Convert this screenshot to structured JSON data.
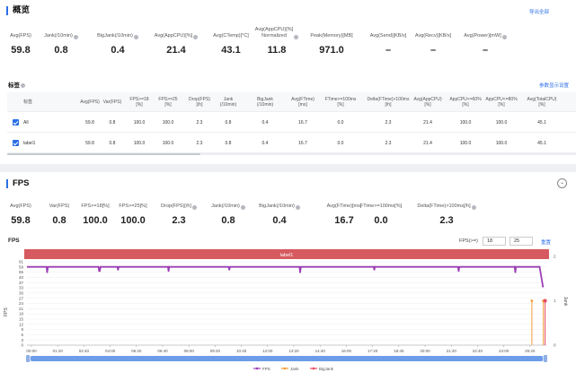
{
  "overview": {
    "title": "概览",
    "export_label": "导出全部",
    "metrics": [
      {
        "label": "Avg(FPS)",
        "value": "59.8",
        "help": false
      },
      {
        "label": "Jank(/10min)",
        "value": "0.8",
        "help": true
      },
      {
        "label": "BigJank(/10min)",
        "value": "0.4",
        "help": true
      },
      {
        "label": "Avg(AppCPU)[%]",
        "value": "21.4",
        "help": true
      },
      {
        "label": "Avg(CTemp)[°C]",
        "value": "43.1",
        "help": false
      },
      {
        "label": "Avg(AppCPU)[%]\nNormalized",
        "value": "11.8",
        "help": true
      },
      {
        "label": "Peak(Memory)[MB]",
        "value": "971.0",
        "help": false
      },
      {
        "label": "Avg(Send)[KB/s]",
        "value": "–",
        "help": false
      },
      {
        "label": "Avg(Recv)[KB/s]",
        "value": "–",
        "help": false
      },
      {
        "label": "Avg(Power)[mW]",
        "value": "–",
        "help": true
      }
    ]
  },
  "labels": {
    "title": "标签",
    "settings_label": "参数显示设置",
    "columns": [
      "标签",
      "Avg(FPS)",
      "Var(FPS)",
      "FPS>=18\n[%]",
      "FPS>=25\n[%]",
      "Drop(FPS)\n[/h]",
      "Jank\n(/10min)",
      "BigJank\n(/10min)",
      "Avg(FTime)\n[ms]",
      "FTime>=100ms\n[%]",
      "Delta(FTime)>100ms\n[/h]",
      "Avg(AppCPU)\n[%]",
      "AppCPU<=60%\n[%]",
      "AppCPU<=80%\n[%]",
      "Avg(TotalCPU)\n[%]"
    ],
    "rows": [
      {
        "name": "All",
        "cells": [
          "59.8",
          "0.8",
          "100.0",
          "100.0",
          "2.3",
          "0.8",
          "0.4",
          "16.7",
          "0.0",
          "2.3",
          "21.4",
          "100.0",
          "100.0",
          "45.1"
        ]
      },
      {
        "name": "label1",
        "cells": [
          "59.8",
          "0.8",
          "100.0",
          "100.0",
          "2.3",
          "0.8",
          "0.4",
          "16.7",
          "0.0",
          "2.3",
          "21.4",
          "100.0",
          "100.0",
          "45.1"
        ]
      }
    ]
  },
  "fps_section": {
    "title": "FPS",
    "metrics": [
      {
        "label": "Avg(FPS)",
        "value": "59.8",
        "help": false
      },
      {
        "label": "Var(FPS)",
        "value": "0.8",
        "help": false
      },
      {
        "label": "FPS>=18[%]",
        "value": "100.0",
        "help": false
      },
      {
        "label": "FPS>=25[%]",
        "value": "100.0",
        "help": false
      },
      {
        "label": "Drop(FPS)[/h]",
        "value": "2.3",
        "help": true
      },
      {
        "label": "Jank(/10min)",
        "value": "0.8",
        "help": true
      },
      {
        "label": "BigJank(/10min)",
        "value": "0.4",
        "help": true
      },
      {
        "label": "Avg(FTime)[ms]",
        "value": "16.7",
        "help": false
      },
      {
        "label": "FTime>=100ms[%]",
        "value": "0.0",
        "help": false
      },
      {
        "label": "Delta(FTime)>100ms[/h]",
        "value": "2.3",
        "help": true
      }
    ],
    "chart_title": "FPS",
    "threshold_label": "FPS(>=)",
    "threshold_1": "18",
    "threshold_2": "25",
    "reset_label": "重置",
    "band_label": "label1"
  },
  "chart_data": {
    "type": "line",
    "ylabel": "FPS",
    "y2label": "Jank",
    "ylim": [
      0,
      91
    ],
    "y2lim": [
      0,
      2
    ],
    "yticks": [
      0,
      3,
      6,
      9,
      12,
      15,
      18,
      21,
      24,
      27,
      30,
      33,
      37,
      40,
      55,
      59,
      91
    ],
    "y2ticks": [
      0,
      1,
      2
    ],
    "x": [
      "00:00",
      "01:20",
      "02:40",
      "04:00",
      "05:20",
      "06:40",
      "08:00",
      "09:20",
      "10:40",
      "12:00",
      "13:20",
      "14:40",
      "16:00",
      "17:20",
      "18:40",
      "20:00",
      "21:20",
      "22:40",
      "24:00",
      "25:20"
    ],
    "x_seconds_max": 1540,
    "series": [
      {
        "name": "FPS",
        "color": "#9b3fb5",
        "baseline": 59.8,
        "dips": [
          [
            60,
            55
          ],
          [
            215,
            56
          ],
          [
            270,
            57
          ],
          [
            420,
            56
          ],
          [
            600,
            57
          ],
          [
            810,
            55
          ],
          [
            1030,
            57
          ],
          [
            1280,
            56
          ],
          [
            1448,
            55
          ],
          [
            1530,
            34
          ]
        ]
      },
      {
        "name": "Jank",
        "color": "#f39c34",
        "spikes": [
          [
            1497,
            1
          ],
          [
            1531,
            1
          ]
        ]
      },
      {
        "name": "BigJank",
        "color": "#e84a5f",
        "spikes": [
          [
            1531,
            1
          ]
        ]
      }
    ],
    "legend_position": "bottom"
  }
}
